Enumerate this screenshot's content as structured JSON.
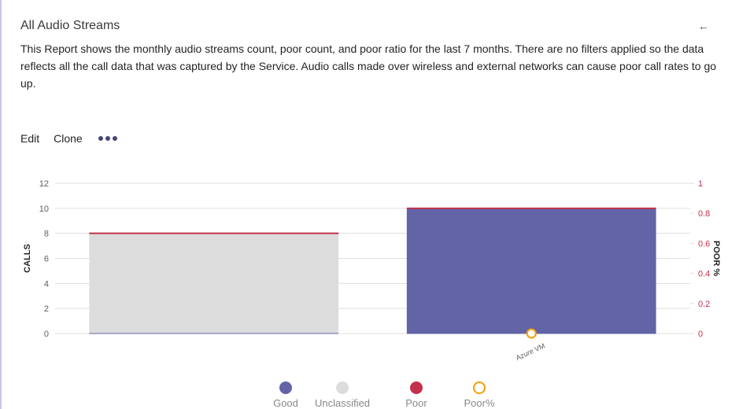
{
  "report": {
    "title": "All Audio Streams",
    "back_icon": "arrow-left-icon",
    "description": "This Report shows the monthly audio streams count, poor count, and poor ratio for the last 7 months. There are no filters applied so the data reflects all the call data that was captured by the Service. Audio calls made over wireless and external networks can cause poor call rates to go up."
  },
  "actions": {
    "edit_label": "Edit",
    "clone_label": "Clone",
    "more_icon": "more-horizontal-icon"
  },
  "colors": {
    "good": "#6264a7",
    "unclassified": "#dcdcdc",
    "poor": "#c4314b",
    "poor_pct": "#f59f00"
  },
  "chart_data": {
    "type": "bar",
    "stacked": true,
    "categories": [
      "",
      "Azure VM"
    ],
    "series": [
      {
        "name": "Good",
        "values": [
          0,
          10
        ],
        "color": "#6264a7"
      },
      {
        "name": "Unclassified",
        "values": [
          8,
          0
        ],
        "color": "#dcdcdc"
      },
      {
        "name": "Poor",
        "values": [
          0,
          0
        ],
        "color": "#c4314b"
      }
    ],
    "line_series": {
      "name": "Poor%",
      "values": [
        null,
        0
      ],
      "axis": "right",
      "color": "#f59f00"
    },
    "ylabel": "CALLS",
    "y2label": "POOR %",
    "ylim": [
      0,
      12
    ],
    "yticks": [
      "0",
      "2",
      "4",
      "6",
      "8",
      "10",
      "12"
    ],
    "y2lim": [
      0,
      1
    ],
    "y2ticks": [
      "0",
      "0.2",
      "0.4",
      "0.6",
      "0.8",
      "1"
    ],
    "grid": true,
    "legend_position": "bottom"
  }
}
